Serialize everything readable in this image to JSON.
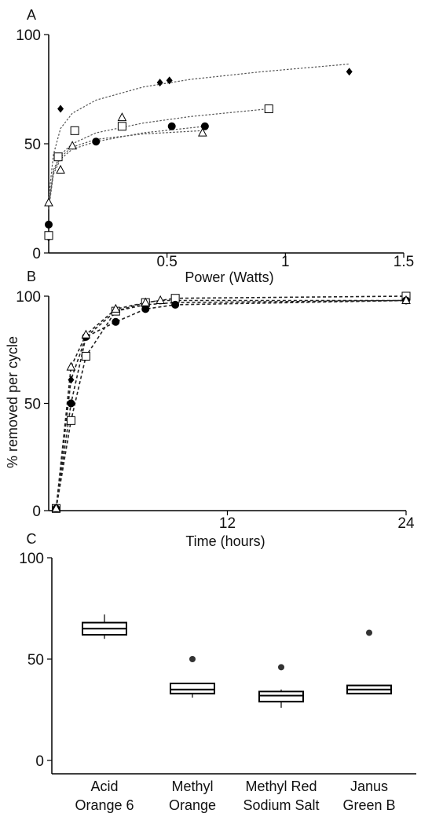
{
  "figure": {
    "panels": [
      "A",
      "B",
      "C"
    ]
  },
  "chart_data": [
    {
      "panel": "A",
      "type": "scatter",
      "title": "",
      "xlabel": "Power (Watts)",
      "ylabel": "",
      "xlim": [
        0,
        1.5
      ],
      "ylim": [
        0,
        100
      ],
      "xticks": [
        0.5,
        1,
        1.5
      ],
      "xtick_labels": [
        "0.5",
        "1",
        "1.5"
      ],
      "yticks": [
        0,
        50,
        100
      ],
      "ytick_labels": [
        "0",
        "50",
        "100"
      ],
      "grid": false,
      "legend": "none",
      "series": [
        {
          "marker": "diamond",
          "points": [
            [
              0,
              7
            ],
            [
              0.05,
              66
            ],
            [
              0.47,
              78
            ],
            [
              0.51,
              79
            ],
            [
              1.27,
              83
            ]
          ],
          "fit": [
            [
              0,
              25
            ],
            [
              0.02,
              45
            ],
            [
              0.05,
              57
            ],
            [
              0.1,
              64
            ],
            [
              0.2,
              70
            ],
            [
              0.4,
              76
            ],
            [
              0.6,
              79.5
            ],
            [
              0.9,
              83
            ],
            [
              1.27,
              86.5
            ]
          ]
        },
        {
          "marker": "square",
          "points": [
            [
              0,
              8
            ],
            [
              0.04,
              44
            ],
            [
              0.11,
              56
            ],
            [
              0.31,
              58
            ],
            [
              0.93,
              66
            ]
          ],
          "fit": [
            [
              0,
              22
            ],
            [
              0.02,
              38
            ],
            [
              0.05,
              45
            ],
            [
              0.1,
              50
            ],
            [
              0.2,
              55
            ],
            [
              0.4,
              59.5
            ],
            [
              0.6,
              62.5
            ],
            [
              0.93,
              66
            ]
          ]
        },
        {
          "marker": "circle",
          "points": [
            [
              0,
              13
            ],
            [
              0.2,
              51
            ],
            [
              0.52,
              58
            ],
            [
              0.66,
              58
            ]
          ],
          "fit": [
            [
              0,
              20
            ],
            [
              0.02,
              36
            ],
            [
              0.05,
              43
            ],
            [
              0.1,
              47.5
            ],
            [
              0.2,
              51
            ],
            [
              0.4,
              55
            ],
            [
              0.66,
              58
            ]
          ]
        },
        {
          "marker": "triangle",
          "points": [
            [
              0,
              23
            ],
            [
              0.05,
              38
            ],
            [
              0.1,
              49
            ],
            [
              0.31,
              62
            ],
            [
              0.65,
              55
            ]
          ],
          "fit": [
            [
              0,
              21
            ],
            [
              0.02,
              37
            ],
            [
              0.05,
              44
            ],
            [
              0.1,
              48.5
            ],
            [
              0.2,
              52
            ],
            [
              0.4,
              54.5
            ],
            [
              0.65,
              56
            ]
          ]
        }
      ]
    },
    {
      "panel": "B",
      "type": "line",
      "title": "",
      "xlabel": "Time (hours)",
      "ylabel": "% removed per cycle",
      "xlim": [
        0,
        24
      ],
      "ylim": [
        0,
        100
      ],
      "xticks": [
        12,
        24
      ],
      "xtick_labels": [
        "12",
        "24"
      ],
      "yticks": [
        0,
        50,
        100
      ],
      "ytick_labels": [
        "0",
        "50",
        "100"
      ],
      "grid": false,
      "legend": "none",
      "series": [
        {
          "marker": "diamond",
          "points": [
            [
              0.5,
              1
            ],
            [
              1.5,
              61
            ],
            [
              2.5,
              81
            ],
            [
              4.5,
              93
            ],
            [
              6.5,
              96
            ],
            [
              8.5,
              97
            ],
            [
              24,
              98
            ]
          ]
        },
        {
          "marker": "square",
          "points": [
            [
              0.5,
              1
            ],
            [
              1.5,
              42
            ],
            [
              2.5,
              72
            ],
            [
              4.5,
              93
            ],
            [
              6.5,
              97
            ],
            [
              8.5,
              99
            ],
            [
              24,
              100
            ]
          ]
        },
        {
          "marker": "circle",
          "points": [
            [
              0.5,
              1
            ],
            [
              1.5,
              50
            ],
            [
              2.5,
              81
            ],
            [
              4.5,
              88
            ],
            [
              6.5,
              94
            ],
            [
              8.5,
              96
            ],
            [
              24,
              98
            ]
          ]
        },
        {
          "marker": "triangle",
          "points": [
            [
              0.5,
              1
            ],
            [
              1.5,
              67
            ],
            [
              2.5,
              82
            ],
            [
              4.5,
              94
            ],
            [
              6.5,
              97
            ],
            [
              7.5,
              98
            ],
            [
              24,
              98
            ]
          ]
        }
      ]
    },
    {
      "panel": "C",
      "type": "box",
      "title": "",
      "xlabel": "",
      "ylabel": "",
      "ylim": [
        0,
        100
      ],
      "yticks": [
        0,
        50,
        100
      ],
      "ytick_labels": [
        "0",
        "50",
        "100"
      ],
      "grid": false,
      "legend": "none",
      "categories": [
        [
          "Acid",
          "Orange 6"
        ],
        [
          "Methyl",
          "Orange"
        ],
        [
          "Methyl Red",
          "Sodium Salt"
        ],
        [
          "Janus",
          "Green B"
        ]
      ],
      "boxes": [
        {
          "whisker_low": 60,
          "q1": 62,
          "median": 65,
          "q3": 68,
          "whisker_high": 72,
          "outliers": []
        },
        {
          "whisker_low": 31,
          "q1": 33,
          "median": 35,
          "q3": 38,
          "whisker_high": 38,
          "outliers": [
            50
          ]
        },
        {
          "whisker_low": 26,
          "q1": 29,
          "median": 32,
          "q3": 34,
          "whisker_high": 35,
          "outliers": [
            46
          ]
        },
        {
          "whisker_low": 33,
          "q1": 33,
          "median": 35,
          "q3": 37,
          "whisker_high": 37,
          "outliers": [
            63
          ]
        }
      ]
    }
  ]
}
